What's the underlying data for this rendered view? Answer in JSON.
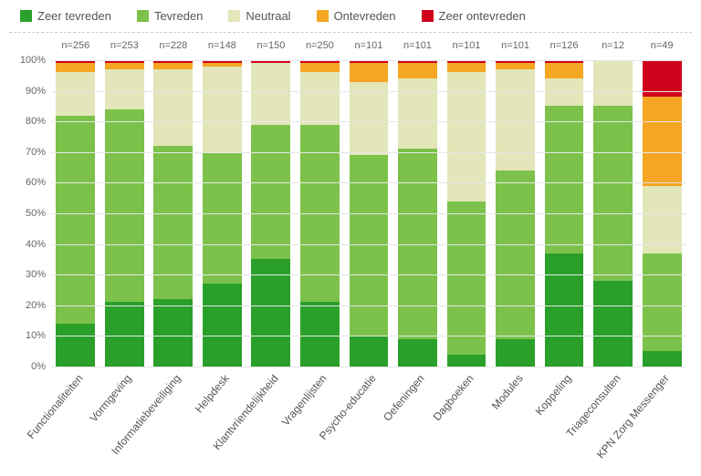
{
  "chart": {
    "type": "stacked-bar-100pct",
    "background_color": "#ffffff",
    "grid_color": "#e6e6e6",
    "ylim": [
      0,
      100
    ],
    "ytick_step": 10,
    "ytick_suffix": "%",
    "bar_width_pct": 80,
    "label_fontsize": 12,
    "label_color": "#555555",
    "n_prefix": "n=",
    "legend": [
      {
        "label": "Zeer tevreden",
        "color": "#2aa02a"
      },
      {
        "label": "Tevreden",
        "color": "#7cc24a"
      },
      {
        "label": "Neutraal",
        "color": "#e2e6b8"
      },
      {
        "label": "Ontevreden",
        "color": "#f5a623"
      },
      {
        "label": "Zeer ontevreden",
        "color": "#d0021b"
      }
    ],
    "categories": [
      {
        "label": "Functionaliteiten",
        "n": 256,
        "values": [
          14,
          68,
          14,
          3,
          1
        ]
      },
      {
        "label": "Vormgeving",
        "n": 253,
        "values": [
          21,
          63,
          13,
          2,
          1
        ]
      },
      {
        "label": "Informatiebeveiliging",
        "n": 228,
        "values": [
          22,
          50,
          25,
          2,
          1
        ]
      },
      {
        "label": "Helpdesk",
        "n": 148,
        "values": [
          27,
          43,
          28,
          1,
          1
        ]
      },
      {
        "label": "Klantvriendelijkheid",
        "n": 150,
        "values": [
          35,
          44,
          20,
          0,
          1
        ]
      },
      {
        "label": "Vragenlijsten",
        "n": 250,
        "values": [
          21,
          58,
          17,
          3,
          1
        ]
      },
      {
        "label": "Psycho-educatie",
        "n": 101,
        "values": [
          10,
          59,
          24,
          6,
          1
        ]
      },
      {
        "label": "Oefeningen",
        "n": 101,
        "values": [
          9,
          62,
          23,
          5,
          1
        ]
      },
      {
        "label": "Dagboeken",
        "n": 101,
        "values": [
          4,
          50,
          42,
          3,
          1
        ]
      },
      {
        "label": "Modules",
        "n": 101,
        "values": [
          9,
          55,
          33,
          2,
          1
        ]
      },
      {
        "label": "Koppeling",
        "n": 126,
        "values": [
          37,
          48,
          9,
          5,
          1
        ]
      },
      {
        "label": "Triageconsulten",
        "n": 12,
        "values": [
          28,
          57,
          15,
          0,
          0
        ]
      },
      {
        "label": "KPN Zorg Messenger",
        "n": 49,
        "values": [
          5,
          32,
          22,
          29,
          12
        ]
      }
    ]
  }
}
